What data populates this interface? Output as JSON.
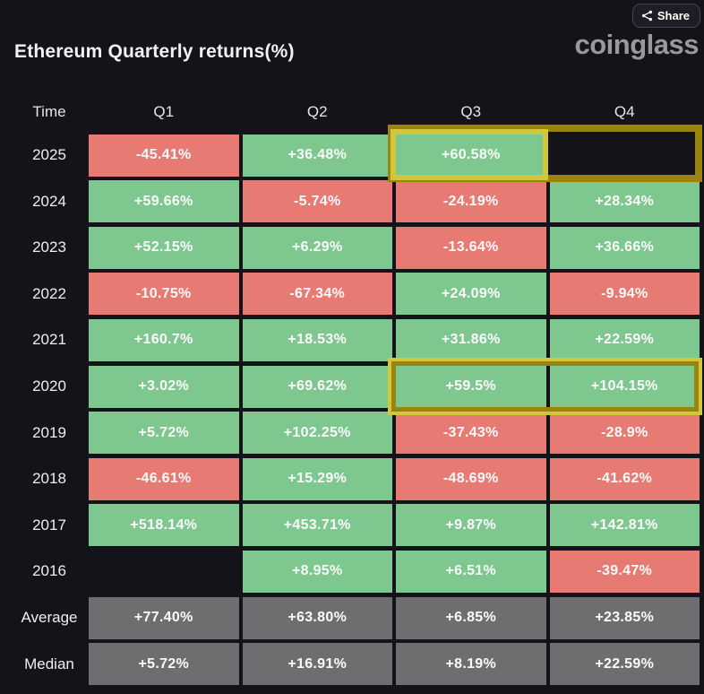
{
  "header": {
    "title": "Ethereum Quarterly returns(%)",
    "brand": "coinglass",
    "share_label": "Share"
  },
  "table": {
    "columns": [
      "Time",
      "Q1",
      "Q2",
      "Q3",
      "Q4"
    ],
    "rows": [
      {
        "label": "2025",
        "cells": [
          {
            "text": "-45.41%",
            "type": "red"
          },
          {
            "text": "+36.48%",
            "type": "green"
          },
          {
            "text": "+60.58%",
            "type": "green"
          },
          {
            "text": "",
            "type": "empty"
          }
        ]
      },
      {
        "label": "2024",
        "cells": [
          {
            "text": "+59.66%",
            "type": "green"
          },
          {
            "text": "-5.74%",
            "type": "red"
          },
          {
            "text": "-24.19%",
            "type": "red"
          },
          {
            "text": "+28.34%",
            "type": "green"
          }
        ]
      },
      {
        "label": "2023",
        "cells": [
          {
            "text": "+52.15%",
            "type": "green"
          },
          {
            "text": "+6.29%",
            "type": "green"
          },
          {
            "text": "-13.64%",
            "type": "red"
          },
          {
            "text": "+36.66%",
            "type": "green"
          }
        ]
      },
      {
        "label": "2022",
        "cells": [
          {
            "text": "-10.75%",
            "type": "red"
          },
          {
            "text": "-67.34%",
            "type": "red"
          },
          {
            "text": "+24.09%",
            "type": "green"
          },
          {
            "text": "-9.94%",
            "type": "red"
          }
        ]
      },
      {
        "label": "2021",
        "cells": [
          {
            "text": "+160.7%",
            "type": "green"
          },
          {
            "text": "+18.53%",
            "type": "green"
          },
          {
            "text": "+31.86%",
            "type": "green"
          },
          {
            "text": "+22.59%",
            "type": "green"
          }
        ]
      },
      {
        "label": "2020",
        "cells": [
          {
            "text": "+3.02%",
            "type": "green"
          },
          {
            "text": "+69.62%",
            "type": "green"
          },
          {
            "text": "+59.5%",
            "type": "green"
          },
          {
            "text": "+104.15%",
            "type": "green"
          }
        ]
      },
      {
        "label": "2019",
        "cells": [
          {
            "text": "+5.72%",
            "type": "green"
          },
          {
            "text": "+102.25%",
            "type": "green"
          },
          {
            "text": "-37.43%",
            "type": "red"
          },
          {
            "text": "-28.9%",
            "type": "red"
          }
        ]
      },
      {
        "label": "2018",
        "cells": [
          {
            "text": "-46.61%",
            "type": "red"
          },
          {
            "text": "+15.29%",
            "type": "green"
          },
          {
            "text": "-48.69%",
            "type": "red"
          },
          {
            "text": "-41.62%",
            "type": "red"
          }
        ]
      },
      {
        "label": "2017",
        "cells": [
          {
            "text": "+518.14%",
            "type": "green"
          },
          {
            "text": "+453.71%",
            "type": "green"
          },
          {
            "text": "+9.87%",
            "type": "green"
          },
          {
            "text": "+142.81%",
            "type": "green"
          }
        ]
      },
      {
        "label": "2016",
        "cells": [
          {
            "text": "",
            "type": "empty"
          },
          {
            "text": "+8.95%",
            "type": "green"
          },
          {
            "text": "+6.51%",
            "type": "green"
          },
          {
            "text": "-39.47%",
            "type": "red"
          }
        ]
      },
      {
        "label": "Average",
        "cells": [
          {
            "text": "+77.40%",
            "type": "gray"
          },
          {
            "text": "+63.80%",
            "type": "gray"
          },
          {
            "text": "+6.85%",
            "type": "gray"
          },
          {
            "text": "+23.85%",
            "type": "gray"
          }
        ]
      },
      {
        "label": "Median",
        "cells": [
          {
            "text": "+5.72%",
            "type": "gray"
          },
          {
            "text": "+16.91%",
            "type": "gray"
          },
          {
            "text": "+8.19%",
            "type": "gray"
          },
          {
            "text": "+22.59%",
            "type": "gray"
          }
        ]
      }
    ]
  },
  "colors": {
    "background": "#141319",
    "green": "#7ec78f",
    "red": "#e77a72",
    "gray": "#6e6e71",
    "gold_bright": "#d2c63c",
    "gold_dark": "#9b840e",
    "brand": "#98989d"
  },
  "chart_data": {
    "type": "table",
    "title": "Ethereum Quarterly returns(%)",
    "columns": [
      "Time",
      "Q1",
      "Q2",
      "Q3",
      "Q4"
    ],
    "rows": [
      [
        "2025",
        -45.41,
        36.48,
        60.58,
        null
      ],
      [
        "2024",
        59.66,
        -5.74,
        -24.19,
        28.34
      ],
      [
        "2023",
        52.15,
        6.29,
        -13.64,
        36.66
      ],
      [
        "2022",
        -10.75,
        -67.34,
        24.09,
        -9.94
      ],
      [
        "2021",
        160.7,
        18.53,
        31.86,
        22.59
      ],
      [
        "2020",
        3.02,
        69.62,
        59.5,
        104.15
      ],
      [
        "2019",
        5.72,
        102.25,
        -37.43,
        -28.9
      ],
      [
        "2018",
        -46.61,
        15.29,
        -48.69,
        -41.62
      ],
      [
        "2017",
        518.14,
        453.71,
        9.87,
        142.81
      ],
      [
        "2016",
        null,
        8.95,
        6.51,
        -39.47
      ],
      [
        "Average",
        77.4,
        63.8,
        6.85,
        23.85
      ],
      [
        "Median",
        5.72,
        16.91,
        8.19,
        22.59
      ]
    ],
    "highlighted_cells": [
      "2025-Q3",
      "2025-Q4",
      "2020-Q3",
      "2020-Q4"
    ],
    "color_coding": {
      "positive": "green",
      "negative": "red",
      "summary_rows": "gray",
      "missing": "empty"
    },
    "legend": "none",
    "grid": "cell heatmap table on dark background"
  }
}
